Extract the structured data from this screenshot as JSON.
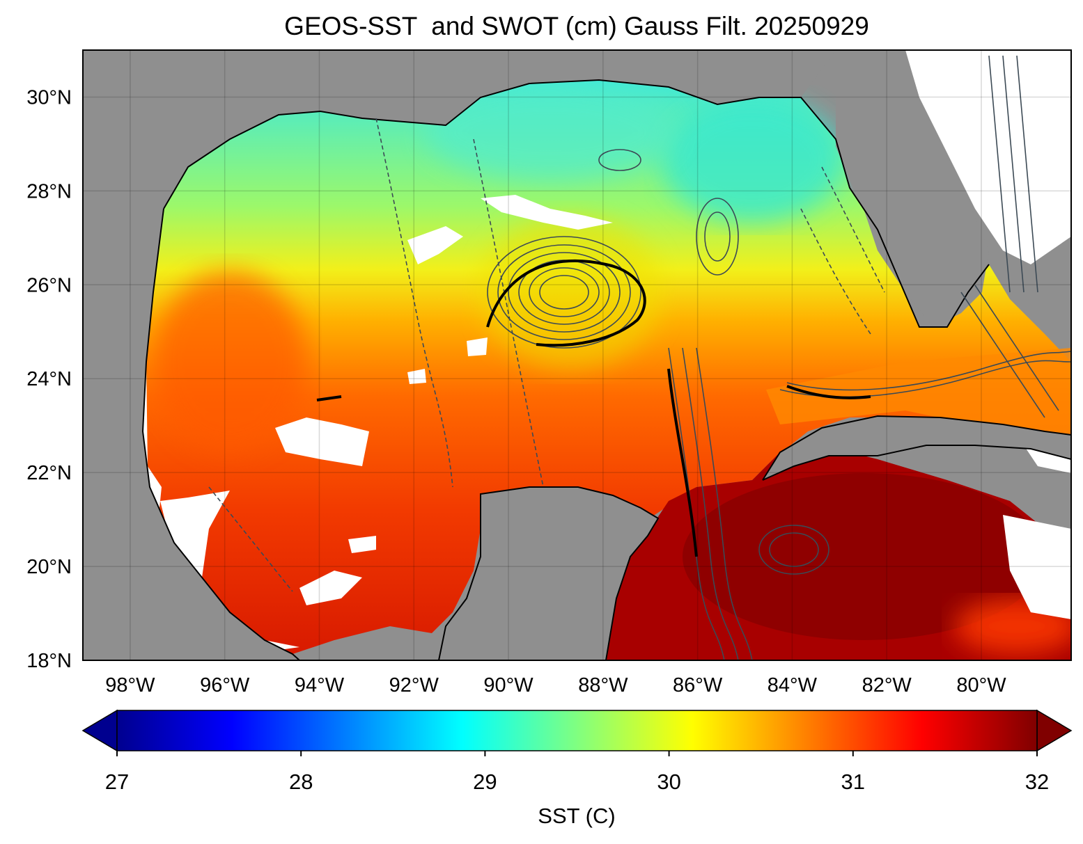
{
  "title": "GEOS-SST  and SWOT (cm) Gauss Filt. 20250929",
  "map": {
    "lon_range": [
      -99,
      -78.1
    ],
    "lat_range": [
      18,
      31
    ],
    "lat_ticks": [
      {
        "value": 18,
        "label": "18°N"
      },
      {
        "value": 20,
        "label": "20°N"
      },
      {
        "value": 22,
        "label": "22°N"
      },
      {
        "value": 24,
        "label": "24°N"
      },
      {
        "value": 26,
        "label": "26°N"
      },
      {
        "value": 28,
        "label": "28°N"
      },
      {
        "value": 30,
        "label": "30°N"
      }
    ],
    "lon_ticks": [
      {
        "value": -98,
        "label": "98°W"
      },
      {
        "value": -96,
        "label": "96°W"
      },
      {
        "value": -94,
        "label": "94°W"
      },
      {
        "value": -92,
        "label": "92°W"
      },
      {
        "value": -90,
        "label": "90°W"
      },
      {
        "value": -88,
        "label": "88°W"
      },
      {
        "value": -86,
        "label": "86°W"
      },
      {
        "value": -84,
        "label": "84°W"
      },
      {
        "value": -82,
        "label": "82°W"
      },
      {
        "value": -80,
        "label": "80°W"
      }
    ],
    "land_color": "#8f8f8f",
    "nodata_color": "#ffffff",
    "grid": true
  },
  "colorbar": {
    "label": "SST (C)",
    "min": 27,
    "max": 32,
    "extend": "both",
    "colormap": "jet",
    "ticks": [
      {
        "value": 27,
        "label": "27"
      },
      {
        "value": 28,
        "label": "28"
      },
      {
        "value": 29,
        "label": "29"
      },
      {
        "value": 30,
        "label": "30"
      },
      {
        "value": 31,
        "label": "31"
      },
      {
        "value": 32,
        "label": "32"
      }
    ]
  }
}
